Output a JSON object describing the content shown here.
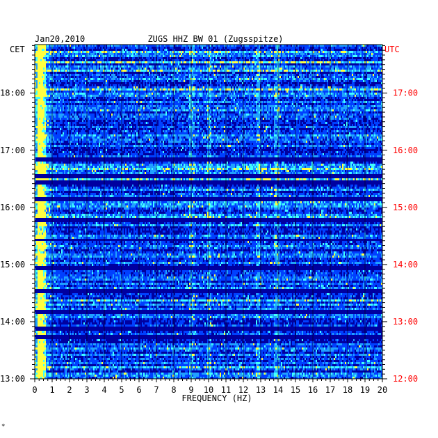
{
  "chart_data": {
    "type": "heatmap",
    "date": "Jan20,2010",
    "title": "ZUGS HHZ BW 01 (Zugsspitze)",
    "xlabel": "FREQUENCY (HZ)",
    "xlim": [
      0,
      20
    ],
    "x_ticks": [
      "0",
      "1",
      "2",
      "3",
      "4",
      "5",
      "6",
      "7",
      "8",
      "9",
      "10",
      "11",
      "12",
      "13",
      "14",
      "15",
      "16",
      "17",
      "18",
      "19",
      "20"
    ],
    "left_axis": {
      "label": "CET",
      "ticks": [
        {
          "label": "18:00",
          "t": 18
        },
        {
          "label": "17:00",
          "t": 17
        },
        {
          "label": "16:00",
          "t": 16
        },
        {
          "label": "15:00",
          "t": 15
        },
        {
          "label": "14:00",
          "t": 14
        },
        {
          "label": "13:00",
          "t": 13
        }
      ]
    },
    "right_axis": {
      "label": "UTC",
      "color": "#ff0000",
      "ticks": [
        {
          "label": "17:00",
          "t": 18
        },
        {
          "label": "16:00",
          "t": 17
        },
        {
          "label": "15:00",
          "t": 16
        },
        {
          "label": "14:00",
          "t": 15
        },
        {
          "label": "13:00",
          "t": 14
        },
        {
          "label": "12:00",
          "t": 13
        }
      ]
    },
    "time_range_cet": [
      13.0,
      18.85
    ],
    "colorscale": [
      "#000060",
      "#0000c0",
      "#0040ff",
      "#20a0ff",
      "#40ffff",
      "#ffff40",
      "#ff2000"
    ],
    "background": "#0000a0",
    "features": {
      "quiet_bands_cet": [
        16.85,
        16.58,
        16.45,
        16.15,
        15.8,
        15.45,
        14.95,
        14.55,
        14.2,
        13.9,
        13.75
      ],
      "strong_frequency_lines_hz": [
        0.3,
        9.0,
        10.0,
        12.8,
        13.9
      ],
      "low_freq_hot_band_hz": [
        0.1,
        0.6
      ]
    },
    "grid": true
  },
  "footnote": "*"
}
